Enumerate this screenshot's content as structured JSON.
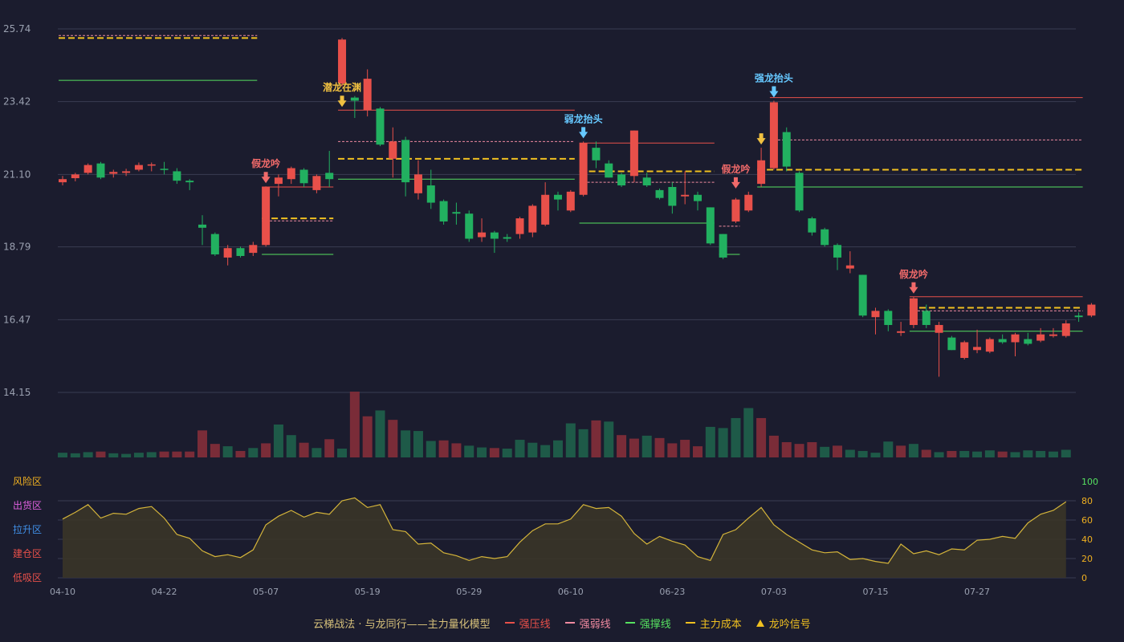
{
  "chart_data": {
    "type": "candlestick",
    "title": "",
    "ylim": [
      14.15,
      25.74
    ],
    "yticks": [
      "25.74",
      "23.42",
      "21.10",
      "18.79",
      "16.47",
      "14.15"
    ],
    "xticks": [
      {
        "label": "04-10",
        "i": 0
      },
      {
        "label": "04-22",
        "i": 8
      },
      {
        "label": "05-07",
        "i": 16
      },
      {
        "label": "05-19",
        "i": 24
      },
      {
        "label": "05-29",
        "i": 32
      },
      {
        "label": "06-10",
        "i": 40
      },
      {
        "label": "06-23",
        "i": 48
      },
      {
        "label": "07-03",
        "i": 56
      },
      {
        "label": "07-15",
        "i": 64
      },
      {
        "label": "07-27",
        "i": 72
      }
    ],
    "candles": [
      [
        20.85,
        20.95,
        20.75,
        21.05
      ],
      [
        20.98,
        21.1,
        20.88,
        21.15
      ],
      [
        21.15,
        21.4,
        21.1,
        21.45
      ],
      [
        21.45,
        21.0,
        20.95,
        21.5
      ],
      [
        21.12,
        21.18,
        21.0,
        21.25
      ],
      [
        21.15,
        21.2,
        21.05,
        21.28
      ],
      [
        21.25,
        21.4,
        21.2,
        21.48
      ],
      [
        21.38,
        21.42,
        21.2,
        21.48
      ],
      [
        21.28,
        21.25,
        21.1,
        21.5
      ],
      [
        21.2,
        20.9,
        20.8,
        21.3
      ],
      [
        20.9,
        20.85,
        20.6,
        20.95
      ],
      [
        19.5,
        19.4,
        18.85,
        19.8
      ],
      [
        19.2,
        18.55,
        18.5,
        19.25
      ],
      [
        18.45,
        18.75,
        18.2,
        18.85
      ],
      [
        18.75,
        18.5,
        18.45,
        18.8
      ],
      [
        18.6,
        18.85,
        18.5,
        18.95
      ],
      [
        18.85,
        20.7,
        18.8,
        20.72
      ],
      [
        20.8,
        21.0,
        20.4,
        21.1
      ],
      [
        20.95,
        21.3,
        20.8,
        21.35
      ],
      [
        21.25,
        20.82,
        20.7,
        21.3
      ],
      [
        20.6,
        21.05,
        20.5,
        21.1
      ],
      [
        21.15,
        20.95,
        20.7,
        21.85
      ],
      [
        24.0,
        25.4,
        23.9,
        25.45
      ],
      [
        23.55,
        23.45,
        22.9,
        23.6
      ],
      [
        23.15,
        24.15,
        22.95,
        24.45
      ],
      [
        23.2,
        22.05,
        22.0,
        23.25
      ],
      [
        21.6,
        22.15,
        21.0,
        22.6
      ],
      [
        22.2,
        20.85,
        20.4,
        22.3
      ],
      [
        20.5,
        21.1,
        20.3,
        21.55
      ],
      [
        20.75,
        20.2,
        20.0,
        21.25
      ],
      [
        20.25,
        19.6,
        19.5,
        20.3
      ],
      [
        19.9,
        19.85,
        19.5,
        20.2
      ],
      [
        19.85,
        19.05,
        18.95,
        19.95
      ],
      [
        19.1,
        19.25,
        18.95,
        19.7
      ],
      [
        19.25,
        19.05,
        18.6,
        19.3
      ],
      [
        19.1,
        19.05,
        18.95,
        19.2
      ],
      [
        19.2,
        19.7,
        19.05,
        19.75
      ],
      [
        19.25,
        20.1,
        19.1,
        20.15
      ],
      [
        19.5,
        20.45,
        19.45,
        20.85
      ],
      [
        20.45,
        20.3,
        19.95,
        20.55
      ],
      [
        19.95,
        20.55,
        19.9,
        20.6
      ],
      [
        20.45,
        22.1,
        20.4,
        22.15
      ],
      [
        21.95,
        21.55,
        21.3,
        22.15
      ],
      [
        21.45,
        21.0,
        21.0,
        21.55
      ],
      [
        21.1,
        20.75,
        20.7,
        21.15
      ],
      [
        21.05,
        22.5,
        20.85,
        22.5
      ],
      [
        21.0,
        20.75,
        20.7,
        21.15
      ],
      [
        20.6,
        20.35,
        20.3,
        20.65
      ],
      [
        20.7,
        20.1,
        19.85,
        20.85
      ],
      [
        20.4,
        20.45,
        20.15,
        21.2
      ],
      [
        20.45,
        20.25,
        19.95,
        20.55
      ],
      [
        20.05,
        18.9,
        18.85,
        20.05
      ],
      [
        19.2,
        18.45,
        18.4,
        19.2
      ],
      [
        19.6,
        20.3,
        19.55,
        20.35
      ],
      [
        19.95,
        20.45,
        19.9,
        20.55
      ],
      [
        20.8,
        21.55,
        20.7,
        21.95
      ],
      [
        21.3,
        23.4,
        21.25,
        23.45
      ],
      [
        22.45,
        21.35,
        21.2,
        22.6
      ],
      [
        21.15,
        19.95,
        19.9,
        21.2
      ],
      [
        19.7,
        19.25,
        19.15,
        19.75
      ],
      [
        19.35,
        18.85,
        18.8,
        19.4
      ],
      [
        18.85,
        18.45,
        18.05,
        18.9
      ],
      [
        18.1,
        18.2,
        17.95,
        18.65
      ],
      [
        17.9,
        16.6,
        16.55,
        17.9
      ],
      [
        16.55,
        16.75,
        16.0,
        16.85
      ],
      [
        16.75,
        16.3,
        16.1,
        16.8
      ],
      [
        16.05,
        16.1,
        15.95,
        16.4
      ],
      [
        16.3,
        17.15,
        16.2,
        17.2
      ],
      [
        16.75,
        16.3,
        16.2,
        16.95
      ],
      [
        16.05,
        16.3,
        14.65,
        16.4
      ],
      [
        15.9,
        15.5,
        15.5,
        15.95
      ],
      [
        15.25,
        15.75,
        15.2,
        15.8
      ],
      [
        15.5,
        15.6,
        15.4,
        16.15
      ],
      [
        15.45,
        15.85,
        15.4,
        15.9
      ],
      [
        15.85,
        15.75,
        15.7,
        16.0
      ],
      [
        15.75,
        16.0,
        15.3,
        16.05
      ],
      [
        15.85,
        15.7,
        15.65,
        16.05
      ],
      [
        15.8,
        16.0,
        15.75,
        16.2
      ],
      [
        15.95,
        16.0,
        15.9,
        16.2
      ],
      [
        15.95,
        16.35,
        15.9,
        16.45
      ],
      [
        16.6,
        16.55,
        16.4,
        16.7
      ],
      [
        16.6,
        16.95,
        16.55,
        17.0
      ]
    ],
    "volume": [
      [
        8,
        0
      ],
      [
        7,
        0
      ],
      [
        9,
        0
      ],
      [
        10,
        1
      ],
      [
        7,
        0
      ],
      [
        6,
        0
      ],
      [
        8,
        0
      ],
      [
        9,
        0
      ],
      [
        10,
        1
      ],
      [
        10,
        1
      ],
      [
        10,
        1
      ],
      [
        46,
        1
      ],
      [
        23,
        1
      ],
      [
        19,
        0
      ],
      [
        11,
        1
      ],
      [
        16,
        0
      ],
      [
        24,
        1
      ],
      [
        56,
        0
      ],
      [
        38,
        0
      ],
      [
        25,
        1
      ],
      [
        16,
        0
      ],
      [
        31,
        1
      ],
      [
        15,
        0
      ],
      [
        112,
        1
      ],
      [
        70,
        1
      ],
      [
        80,
        0
      ],
      [
        64,
        1
      ],
      [
        46,
        0
      ],
      [
        45,
        0
      ],
      [
        28,
        0
      ],
      [
        29,
        1
      ],
      [
        24,
        1
      ],
      [
        20,
        0
      ],
      [
        17,
        0
      ],
      [
        16,
        1
      ],
      [
        15,
        0
      ],
      [
        30,
        0
      ],
      [
        25,
        0
      ],
      [
        21,
        0
      ],
      [
        29,
        0
      ],
      [
        58,
        0
      ],
      [
        48,
        0
      ],
      [
        63,
        1
      ],
      [
        61,
        0
      ],
      [
        38,
        1
      ],
      [
        32,
        1
      ],
      [
        37,
        0
      ],
      [
        33,
        1
      ],
      [
        24,
        1
      ],
      [
        30,
        1
      ],
      [
        19,
        1
      ],
      [
        52,
        0
      ],
      [
        50,
        0
      ],
      [
        67,
        0
      ],
      [
        84,
        0
      ],
      [
        67,
        1
      ],
      [
        37,
        1
      ],
      [
        26,
        1
      ],
      [
        23,
        1
      ],
      [
        26,
        1
      ],
      [
        18,
        0
      ],
      [
        20,
        1
      ],
      [
        13,
        0
      ],
      [
        11,
        0
      ],
      [
        8,
        0
      ],
      [
        27,
        0
      ],
      [
        20,
        1
      ],
      [
        23,
        0
      ],
      [
        13,
        1
      ],
      [
        9,
        0
      ],
      [
        11,
        1
      ],
      [
        11,
        0
      ],
      [
        10,
        0
      ],
      [
        12,
        0
      ],
      [
        10,
        1
      ],
      [
        9,
        0
      ],
      [
        12,
        0
      ],
      [
        11,
        0
      ],
      [
        10,
        0
      ],
      [
        13,
        0
      ]
    ],
    "oscillator": [
      61,
      68,
      76,
      62,
      67,
      66,
      72,
      74,
      62,
      45,
      41,
      28,
      22,
      24,
      21,
      29,
      55,
      64,
      70,
      63,
      68,
      66,
      80,
      83,
      73,
      76,
      50,
      48,
      35,
      36,
      26,
      23,
      18,
      22,
      20,
      22,
      37,
      49,
      56,
      56,
      61,
      76,
      72,
      73,
      64,
      46,
      35,
      43,
      38,
      34,
      22,
      18,
      45,
      50,
      62,
      73,
      55,
      45,
      37,
      29,
      26,
      27,
      19,
      20,
      17,
      15,
      35,
      25,
      28,
      24,
      30,
      29,
      39,
      40,
      43,
      41,
      57,
      66,
      70,
      79
    ],
    "osc_ylim": [
      0,
      100
    ],
    "osc_yticks": [
      "100",
      "80",
      "60",
      "40",
      "20",
      "0"
    ],
    "osc_zones": [
      {
        "label": "风险区",
        "color": "#f0b020"
      },
      {
        "label": "出货区",
        "color": "#e060e0"
      },
      {
        "label": "拉升区",
        "color": "#4090e8"
      },
      {
        "label": "建仓区",
        "color": "#e8504a"
      },
      {
        "label": "低吸区",
        "color": "#e8504a"
      }
    ],
    "levels": [
      {
        "kind": "weak",
        "y": 25.53,
        "x1": 0,
        "x2": 15
      },
      {
        "kind": "cost",
        "y": 25.45,
        "x1": 0,
        "x2": 15
      },
      {
        "kind": "support",
        "y": 24.1,
        "x1": 0,
        "x2": 15
      },
      {
        "kind": "pressure",
        "y": 20.7,
        "x1": 16,
        "x2": 21
      },
      {
        "kind": "weak",
        "y": 19.62,
        "x1": 16,
        "x2": 21
      },
      {
        "kind": "cost",
        "y": 19.7,
        "x1": 16,
        "x2": 21
      },
      {
        "kind": "support",
        "y": 18.55,
        "x1": 16,
        "x2": 21
      },
      {
        "kind": "pressure",
        "y": 23.15,
        "x1": 22,
        "x2": 40
      },
      {
        "kind": "weak",
        "y": 22.15,
        "x1": 22,
        "x2": 40
      },
      {
        "kind": "cost",
        "y": 21.6,
        "x1": 22,
        "x2": 40
      },
      {
        "kind": "support",
        "y": 20.95,
        "x1": 22,
        "x2": 40
      },
      {
        "kind": "pressure",
        "y": 22.1,
        "x1": 41,
        "x2": 51
      },
      {
        "kind": "weak",
        "y": 20.85,
        "x1": 41,
        "x2": 51
      },
      {
        "kind": "cost",
        "y": 21.2,
        "x1": 41,
        "x2": 51
      },
      {
        "kind": "support",
        "y": 19.55,
        "x1": 41,
        "x2": 51
      },
      {
        "kind": "support",
        "y": 18.55,
        "x1": 52,
        "x2": 53
      },
      {
        "kind": "weak",
        "y": 19.45,
        "x1": 52,
        "x2": 53
      },
      {
        "kind": "pressure",
        "y": 23.55,
        "x1": 56,
        "x2": 80
      },
      {
        "kind": "weak",
        "y": 22.2,
        "x1": 56,
        "x2": 80
      },
      {
        "kind": "cost",
        "y": 21.25,
        "x1": 55,
        "x2": 80
      },
      {
        "kind": "support",
        "y": 20.7,
        "x1": 55,
        "x2": 80
      },
      {
        "kind": "pressure",
        "y": 17.2,
        "x1": 67,
        "x2": 80
      },
      {
        "kind": "weak",
        "y": 16.75,
        "x1": 67,
        "x2": 80
      },
      {
        "kind": "cost",
        "y": 16.85,
        "x1": 67,
        "x2": 80
      },
      {
        "kind": "support",
        "y": 16.1,
        "x1": 67,
        "x2": 80
      }
    ],
    "signals": [
      {
        "i": 16,
        "text": "假龙吟",
        "color": "#f06a6a",
        "price": 20.72
      },
      {
        "i": 22,
        "text": "潜龙在渊",
        "color": "#f0c040",
        "price": 23.15
      },
      {
        "i": 41,
        "text": "弱龙抬头",
        "color": "#66c8ff",
        "price": 22.15
      },
      {
        "i": 53,
        "text": "假龙吟",
        "color": "#f06a6a",
        "price": 20.55
      },
      {
        "i": 55,
        "text": "",
        "color": "#f0c040",
        "price": 21.95
      },
      {
        "i": 56,
        "text": "强龙抬头",
        "color": "#66c8ff",
        "price": 23.45
      },
      {
        "i": 67,
        "text": "假龙吟",
        "color": "#f06a6a",
        "price": 17.2
      }
    ],
    "legend": [
      {
        "label": "云梯战法 · 与龙同行——主力量化模型",
        "color": "#d6c07a",
        "kind": "text"
      },
      {
        "label": "强压线",
        "color": "#e8504a",
        "kind": "solid"
      },
      {
        "label": "强弱线",
        "color": "#f08aa0",
        "kind": "dash"
      },
      {
        "label": "强撑线",
        "color": "#56e060",
        "kind": "solid"
      },
      {
        "label": "主力成本",
        "color": "#f0c020",
        "kind": "dash"
      },
      {
        "label": "龙吟信号",
        "color": "#f0c020",
        "kind": "triangle"
      }
    ],
    "colors": {
      "up": "#e8504a",
      "down": "#22b060",
      "up_vol": "#7a2c38",
      "down_vol": "#1e5a48",
      "pressure": "#e8504a",
      "weak": "#f08aa0",
      "support": "#56e060",
      "cost": "#f0c020",
      "osc_line": "#d4b43a",
      "osc_fill": "#3a3528",
      "grid": "#3a3c52",
      "axis_text": "#9aa0b0",
      "osc_axis_text": "#f0b020"
    }
  }
}
